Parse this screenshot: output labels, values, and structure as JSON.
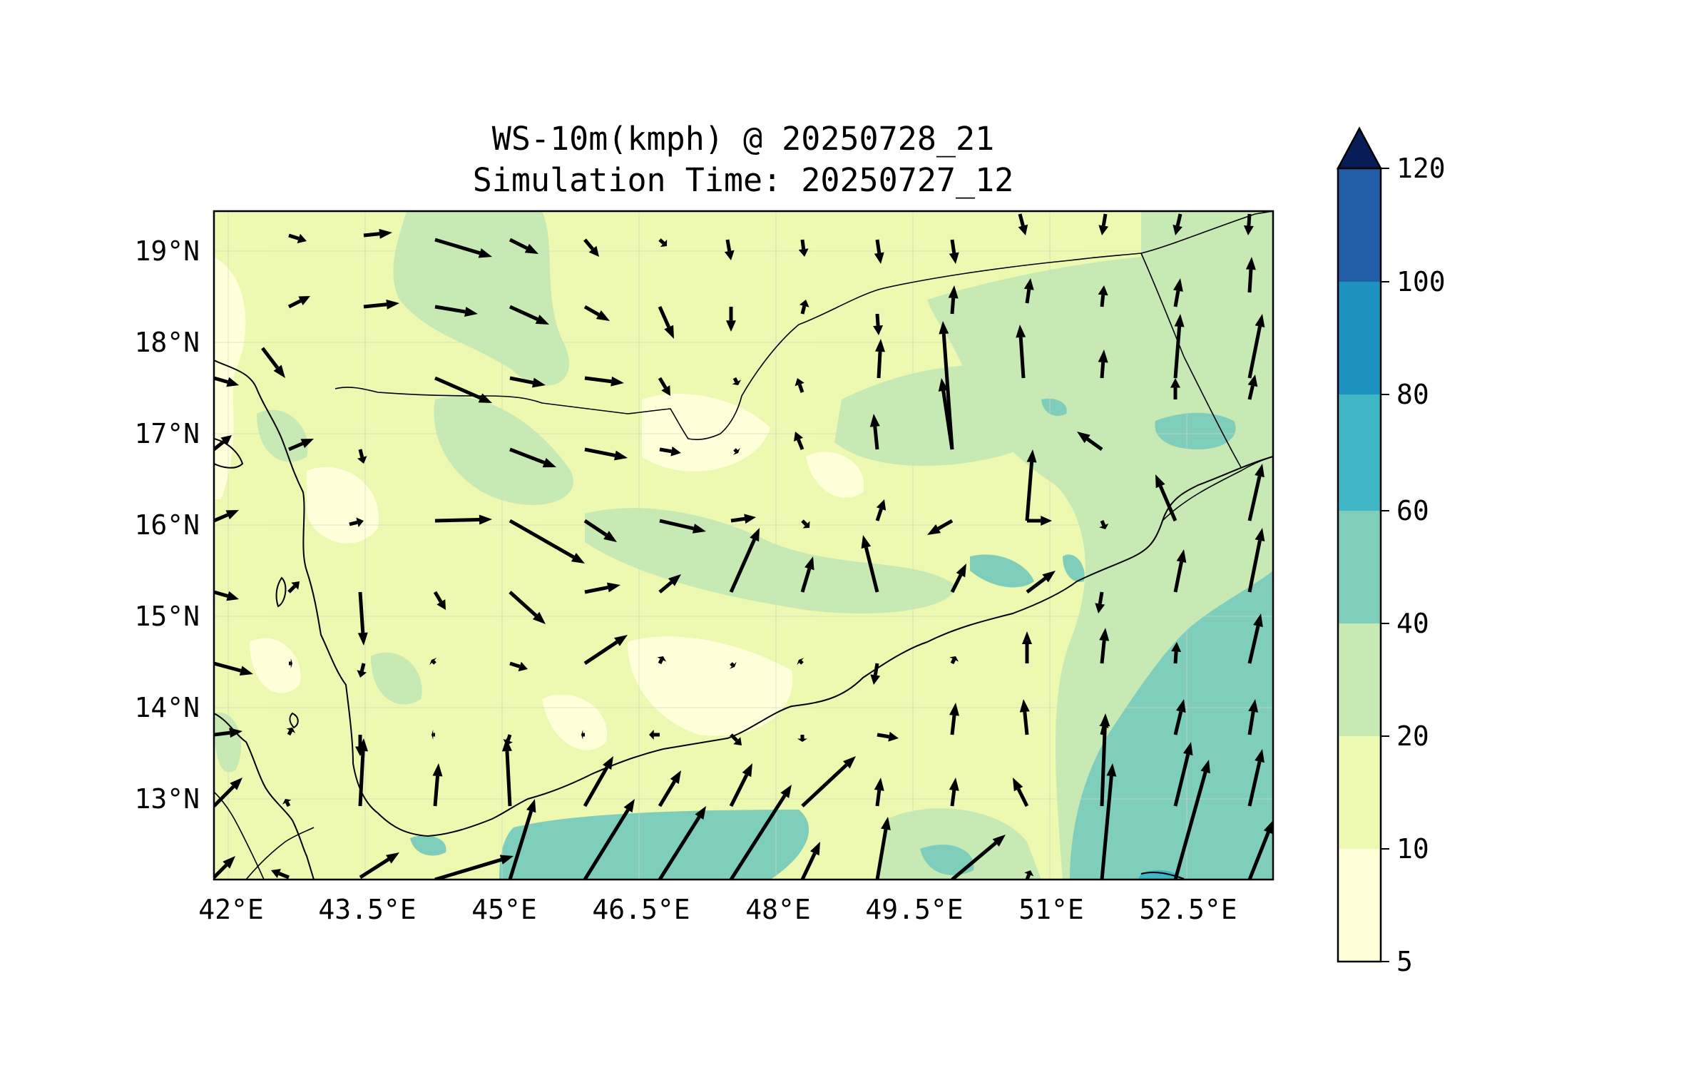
{
  "title": {
    "line1": "WS-10m(kmph) @ 20250728_21",
    "line2": "Simulation Time: 20250727_12"
  },
  "map": {
    "lon_range": [
      41.8,
      53.4
    ],
    "lat_range": [
      12.1,
      19.45
    ],
    "x_ticks": [
      {
        "lon": 42.0,
        "label": "42°E"
      },
      {
        "lon": 43.5,
        "label": "43.5°E"
      },
      {
        "lon": 45.0,
        "label": "45°E"
      },
      {
        "lon": 46.5,
        "label": "46.5°E"
      },
      {
        "lon": 48.0,
        "label": "48°E"
      },
      {
        "lon": 49.5,
        "label": "49.5°E"
      },
      {
        "lon": 51.0,
        "label": "51°E"
      },
      {
        "lon": 52.5,
        "label": "52.5°E"
      }
    ],
    "y_ticks": [
      {
        "lat": 19,
        "label": "19°N"
      },
      {
        "lat": 18,
        "label": "18°N"
      },
      {
        "lat": 17,
        "label": "17°N"
      },
      {
        "lat": 16,
        "label": "16°N"
      },
      {
        "lat": 15,
        "label": "15°N"
      },
      {
        "lat": 14,
        "label": "14°N"
      },
      {
        "lat": 13,
        "label": "13°N"
      }
    ],
    "field_colors": {
      "5-10": "#ffffd9",
      "10-20": "#edf8b1",
      "20-40": "#c7e9b4",
      "40-60": "#7fcdbb",
      "60-80": "#41b6c4",
      "80-100": "#1d91c0",
      "100-120": "#225ea8",
      "120+": "#0c2c84"
    }
  },
  "colorbar": {
    "levels": [
      "5",
      "10",
      "20",
      "40",
      "60",
      "80",
      "100",
      "120"
    ],
    "colors": [
      "#ffffd9",
      "#edf8b1",
      "#c7e9b4",
      "#7fcdbb",
      "#41b6c4",
      "#1d91c0",
      "#225ea8",
      "#0c2c84"
    ],
    "extend_color": "#081d58"
  }
}
